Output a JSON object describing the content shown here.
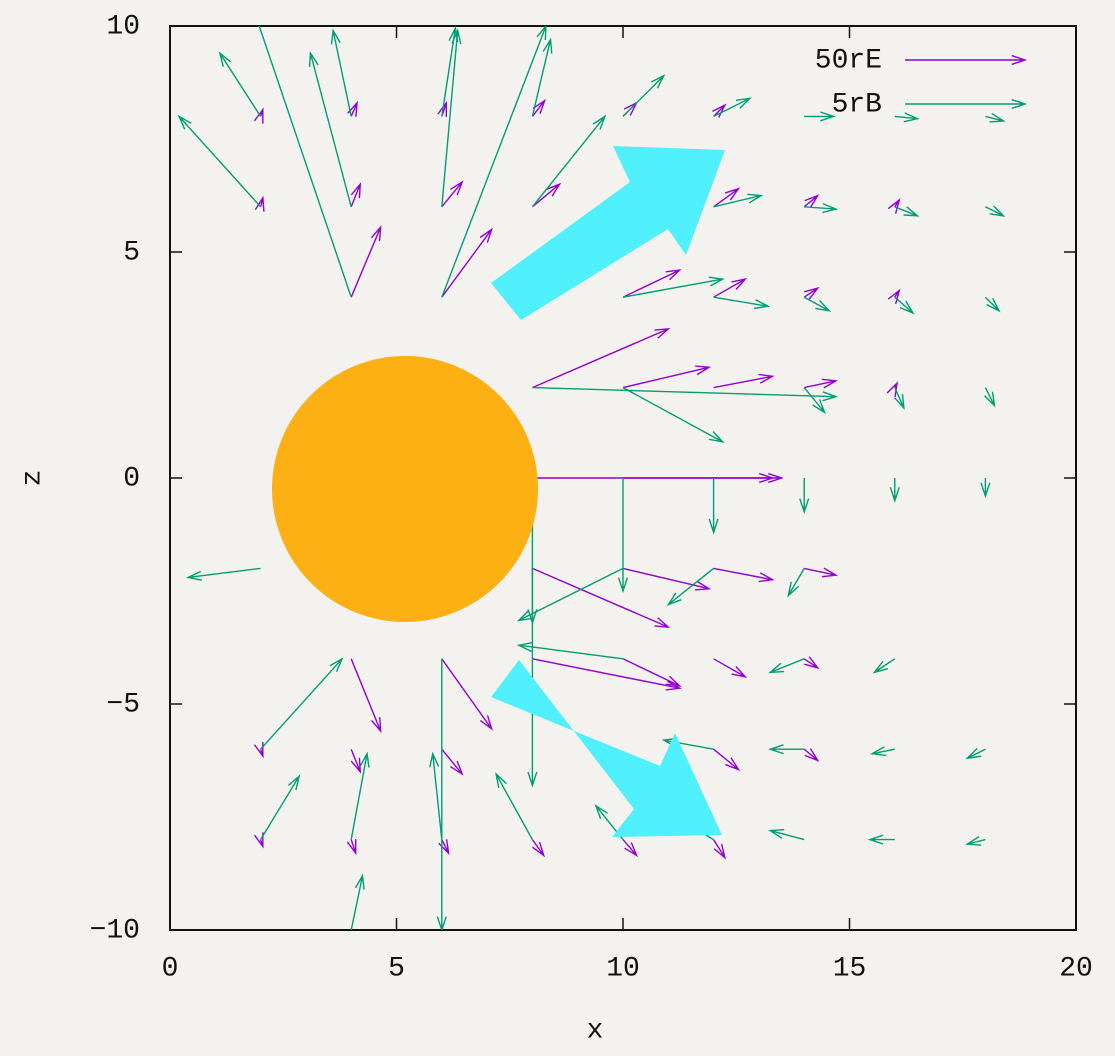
{
  "chart_data": {
    "type": "vector",
    "x_label": "x",
    "y_label": "z",
    "xlim": [
      0,
      20
    ],
    "ylim": [
      -10,
      10
    ],
    "xticks": [
      0,
      5,
      10,
      15,
      20
    ],
    "yticks": [
      {
        "value": -10,
        "label": "−10"
      },
      {
        "value": -5,
        "label": "−5"
      },
      0,
      5,
      10
    ],
    "legend": "top-right",
    "series": [
      {
        "name": "50rE",
        "color": "#9400d3",
        "x": [
          2,
          2,
          4,
          4,
          4,
          6,
          6,
          6,
          8,
          8,
          8,
          8,
          10,
          10,
          10,
          10,
          12,
          12,
          12,
          12,
          14,
          14,
          14,
          16,
          16,
          16,
          8,
          10,
          12,
          14,
          8,
          10,
          12,
          4,
          6,
          4,
          6,
          2,
          2,
          4,
          6,
          8,
          10,
          12,
          12,
          14,
          14
        ],
        "y": [
          8,
          6,
          8,
          6,
          4,
          8,
          6,
          4,
          8,
          6,
          2,
          0,
          8,
          4,
          2,
          0,
          8,
          6,
          4,
          2,
          6,
          4,
          2,
          6,
          4,
          2,
          -2,
          -2,
          -2,
          -2,
          -4,
          -4,
          -4,
          -4,
          -4,
          -6,
          -6,
          -6,
          -8,
          -8,
          -8,
          -8,
          -8,
          -8,
          -6,
          -6,
          -4
        ],
        "dx": [
          0.05,
          0.05,
          0.13,
          0.2,
          0.65,
          0.1,
          0.45,
          1.1,
          0.27,
          0.6,
          3,
          5.5,
          0.3,
          1.25,
          1.9,
          3.3,
          0.25,
          0.55,
          0.7,
          1.3,
          0.3,
          0.3,
          0.7,
          0.1,
          0.1,
          0.05,
          3,
          1.9,
          1.3,
          0.7,
          3.25,
          1.25,
          0.7,
          0.65,
          1.1,
          0.2,
          0.45,
          0.05,
          0.05,
          0.1,
          0.15,
          0.25,
          0.3,
          0.25,
          0.55,
          0.3,
          0.3
        ],
        "dy": [
          0.15,
          0.2,
          0.3,
          0.5,
          1.55,
          0.3,
          0.55,
          1.5,
          0.35,
          0.5,
          1.3,
          0,
          0.3,
          0.6,
          0.45,
          0,
          0.25,
          0.4,
          0.4,
          0.25,
          0.25,
          0.2,
          0.15,
          0.15,
          0.15,
          0.1,
          -1.3,
          -0.45,
          -0.25,
          -0.15,
          -0.65,
          -0.6,
          -0.4,
          -1.6,
          -1.55,
          -0.5,
          -0.55,
          -0.15,
          -0.15,
          -0.3,
          -0.3,
          -0.35,
          -0.35,
          -0.4,
          -0.45,
          -0.25,
          -0.2
        ]
      },
      {
        "name": "5rB",
        "color": "#009e73",
        "x": [
          4,
          6,
          4,
          6,
          2,
          2,
          4,
          6,
          8,
          8,
          10,
          12,
          12,
          14,
          14,
          16,
          18,
          16,
          18,
          10,
          12,
          14,
          16,
          18,
          10,
          8,
          14,
          16,
          18,
          8,
          10,
          12,
          14,
          16,
          18,
          8,
          10,
          12,
          14,
          10,
          14,
          16,
          6,
          2,
          2,
          4,
          4,
          6,
          8,
          10,
          12,
          14,
          16,
          18,
          12,
          14,
          16,
          18,
          2
        ],
        "y": [
          4,
          4,
          6,
          6,
          6,
          8,
          8,
          8,
          6,
          8,
          8,
          8,
          6,
          8,
          6,
          8,
          8,
          6,
          6,
          4,
          4,
          4,
          4,
          4,
          2,
          2,
          2,
          2,
          2,
          0,
          0,
          0,
          0,
          0,
          0,
          -2,
          -2,
          -2,
          -2,
          -4,
          -4,
          -4,
          -4,
          -6,
          -8,
          -8,
          -10,
          -8,
          -8,
          -8,
          -8,
          -8,
          -8,
          -8,
          -6,
          -6,
          -6,
          -6,
          -2
        ],
        "dx": [
          -2.2,
          2.3,
          -0.9,
          0.35,
          -1.8,
          -0.9,
          -0.4,
          0.3,
          1.6,
          0.4,
          0.9,
          0.8,
          1.05,
          0.65,
          0.7,
          0.5,
          0.4,
          0.5,
          0.4,
          2.2,
          1.2,
          0.55,
          0.4,
          0.3,
          2.2,
          6.7,
          0.45,
          0.2,
          0.2,
          0,
          0,
          0,
          0,
          0,
          0,
          0,
          -2.3,
          -1,
          -0.35,
          -2.3,
          -0.75,
          -0.45,
          0,
          1.8,
          0.85,
          0.35,
          0.25,
          -0.2,
          -0.8,
          -0.6,
          -0.75,
          -0.75,
          -0.55,
          -0.4,
          -1.1,
          -0.75,
          -0.5,
          -0.4,
          -1.6
        ],
        "dy": [
          6.5,
          6,
          3.4,
          3.9,
          2,
          1.4,
          1.9,
          1.95,
          2,
          1.7,
          0.9,
          0.4,
          0.25,
          0,
          -0.05,
          -0.05,
          -0.1,
          -0.2,
          -0.2,
          0.4,
          -0.2,
          -0.3,
          -0.35,
          -0.3,
          -1.2,
          -0.2,
          -0.55,
          -0.45,
          -0.4,
          -3.2,
          -2.5,
          -1.2,
          -0.75,
          -0.5,
          -0.4,
          -4.8,
          -1.15,
          -0.8,
          -0.6,
          0.3,
          -0.3,
          -0.3,
          -6,
          2,
          1.4,
          1.9,
          1.2,
          1.9,
          1.45,
          0.75,
          0.45,
          0.2,
          0,
          -0.1,
          0.2,
          0,
          -0.1,
          -0.2,
          -0.2
        ]
      }
    ]
  }
}
